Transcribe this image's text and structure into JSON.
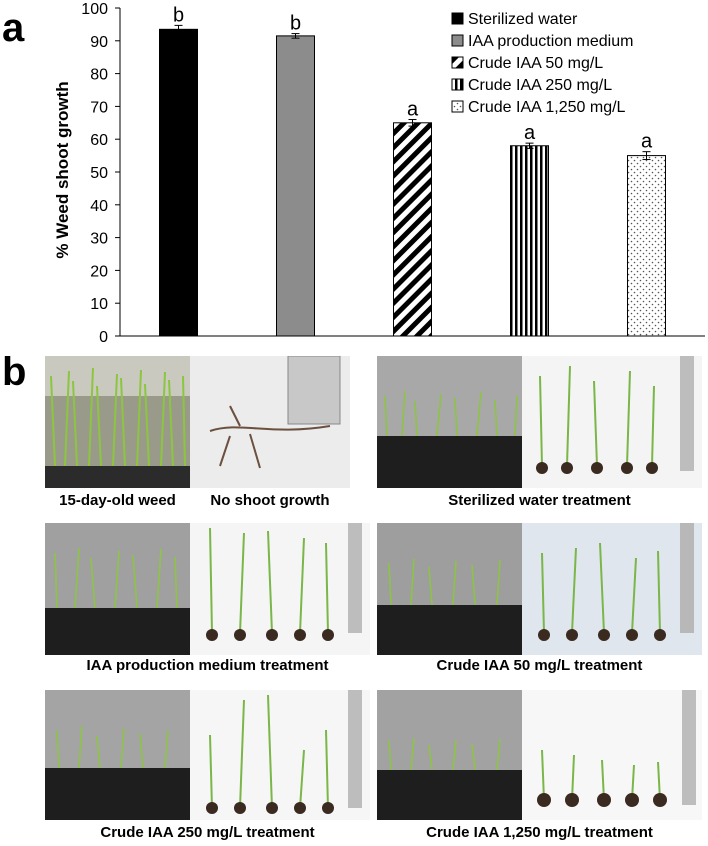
{
  "panels": {
    "a": "a",
    "b": "b"
  },
  "chart_data": {
    "type": "bar",
    "ylabel": "% Weed shoot growth",
    "ylim": [
      0,
      100
    ],
    "yticks": [
      0,
      10,
      20,
      30,
      40,
      50,
      60,
      70,
      80,
      90,
      100
    ],
    "grid": false,
    "legend_position": "top-right",
    "categories": [
      "Sterilized water",
      "IAA production medium",
      "Crude IAA 50 mg/L",
      "Crude IAA 250 mg/L",
      "Crude IAA 1,250 mg/L"
    ],
    "values": [
      93.5,
      91.5,
      65,
      58,
      55
    ],
    "errors": [
      1.2,
      0.7,
      1.0,
      0.8,
      1.2
    ],
    "letters": [
      "b",
      "b",
      "a",
      "a",
      "a"
    ],
    "patterns": [
      "solid-black",
      "solid-gray",
      "diagonal-stripes",
      "vertical-stripes",
      "dots"
    ]
  },
  "captions": [
    "15-day-old weed",
    "No shoot growth",
    "Sterilized water treatment",
    "IAA production medium treatment",
    "Crude IAA  50 mg/L treatment",
    "Crude IAA  250 mg/L treatment",
    "Crude IAA  1,250 mg/L treatment"
  ]
}
